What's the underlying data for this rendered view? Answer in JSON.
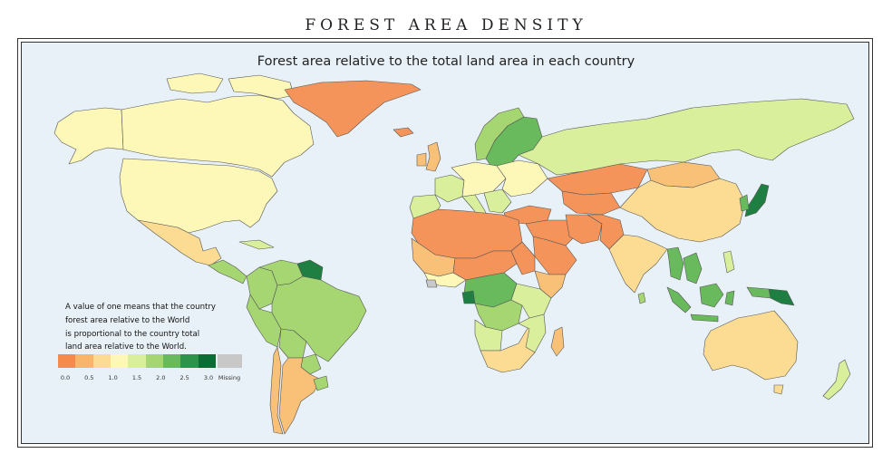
{
  "title": "FOREST AREA DENSITY",
  "subtitle": "Forest area relative to the total land area in each country",
  "note_lines": [
    "A value of one means that the country",
    "forest area relative to the World",
    "is proportional to the country total",
    "land area relative to the World."
  ],
  "legend": {
    "ticks": [
      "0.0",
      "0.5",
      "1.0",
      "1.5",
      "2.0",
      "2.5",
      "3.0"
    ],
    "missing_label": "Missing",
    "colors": [
      "#f58a4b",
      "#f9b56a",
      "#fcdc93",
      "#fdf7b8",
      "#d9ef9c",
      "#a6d672",
      "#68ba5c",
      "#2e934a",
      "#0d6b34"
    ],
    "missing_color": "#c8c8c8"
  },
  "colors": {
    "ocean": "#e8f1f7",
    "border": "#555555",
    "very_low": "#f5945a",
    "low": "#f9c177",
    "medium_low": "#fcdc93",
    "about_one": "#fdf7b8",
    "medium": "#d9ef9c",
    "high": "#a6d672",
    "very_high": "#68ba5c",
    "highest": "#1f7e42",
    "missing": "#c8c8c8"
  }
}
